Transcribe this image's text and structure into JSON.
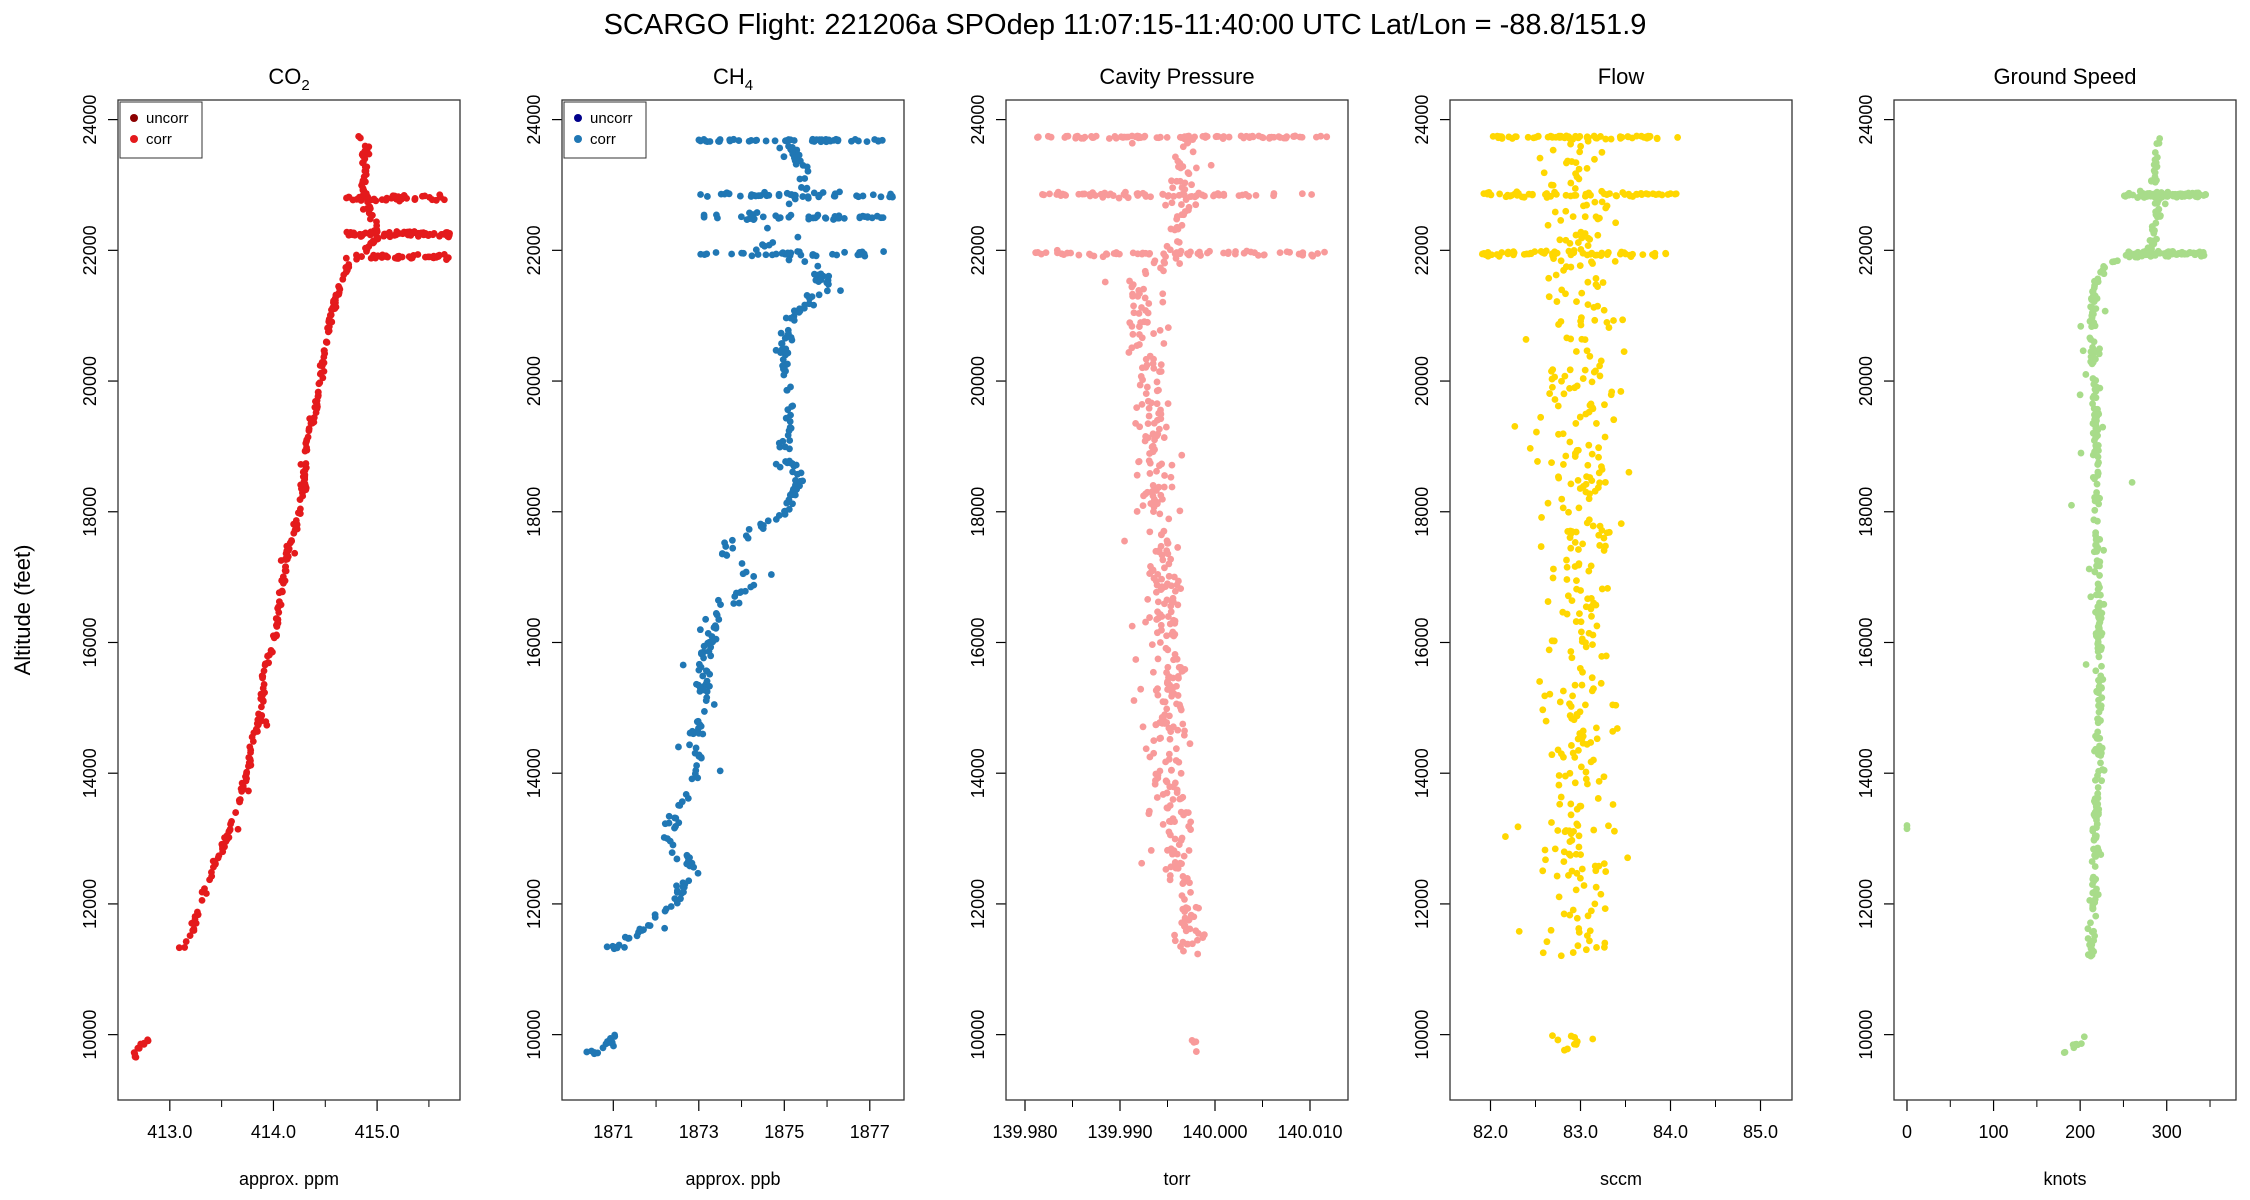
{
  "figure": {
    "title": "SCARGO Flight: 221206a  SPOdep  11:07:15-11:40:00 UTC  Lat/Lon = -88.8/151.9",
    "ylabel": "Altitude (feet)"
  },
  "chart_data": [
    {
      "type": "scatter",
      "title": "CO",
      "title_sub": "2",
      "xlabel": "approx. ppm",
      "xlim": [
        412.5,
        415.8
      ],
      "xticks": [
        "413.0",
        "414.0",
        "415.0"
      ],
      "xtick_values": [
        413.0,
        414.0,
        415.0
      ],
      "minor_xticks": [
        413.5,
        414.5,
        415.5
      ],
      "ylim": [
        9000,
        24300
      ],
      "yticks": [
        10000,
        12000,
        14000,
        16000,
        18000,
        20000,
        22000,
        24000
      ],
      "colors": {
        "uncorr": "#8b0000",
        "corr": "#e41a1c"
      },
      "legend": {
        "position": "top-left",
        "entries": [
          "uncorr",
          "corr"
        ]
      },
      "series": [
        {
          "name": "corr",
          "kind": "profile",
          "profile": [
            [
              9650,
              412.65
            ],
            [
              9800,
              412.7
            ],
            [
              9950,
              412.8
            ],
            [
              11200,
              413.05
            ],
            [
              11500,
              413.2
            ],
            [
              12000,
              413.3
            ],
            [
              12500,
              413.4
            ],
            [
              13000,
              413.55
            ],
            [
              13500,
              413.65
            ],
            [
              14000,
              413.75
            ],
            [
              14500,
              413.8
            ],
            [
              15000,
              413.9
            ],
            [
              15500,
              413.9
            ],
            [
              16000,
              414.0
            ],
            [
              16500,
              414.05
            ],
            [
              17000,
              414.1
            ],
            [
              17500,
              414.15
            ],
            [
              18000,
              414.25
            ],
            [
              18500,
              414.3
            ],
            [
              19000,
              414.3
            ],
            [
              19500,
              414.4
            ],
            [
              20000,
              414.45
            ],
            [
              20500,
              414.5
            ],
            [
              21000,
              414.55
            ],
            [
              21500,
              414.65
            ],
            [
              21850,
              414.75
            ],
            [
              22000,
              414.9
            ],
            [
              22200,
              415.0
            ],
            [
              22500,
              414.95
            ],
            [
              22800,
              414.9
            ],
            [
              23000,
              414.85
            ],
            [
              23200,
              414.9
            ],
            [
              23400,
              414.85
            ],
            [
              23600,
              414.9
            ],
            [
              23800,
              414.8
            ]
          ],
          "gaps": [
            [
              10000,
              11200
            ]
          ],
          "noise": 0.035,
          "outlier_noise": 0.12,
          "dense_bands": [
            21900,
            22250,
            22800
          ],
          "band_range": [
            414.7,
            415.7
          ],
          "n": 520,
          "seed": 11
        }
      ]
    },
    {
      "type": "scatter",
      "title": "CH",
      "title_sub": "4",
      "xlabel": "approx. ppb",
      "xlim": [
        1869.8,
        1877.8
      ],
      "xticks": [
        "1871",
        "1873",
        "1875",
        "1877"
      ],
      "xtick_values": [
        1871,
        1873,
        1875,
        1877
      ],
      "minor_xticks": [
        1872,
        1874,
        1876
      ],
      "ylim": [
        9000,
        24300
      ],
      "yticks": [
        10000,
        12000,
        14000,
        16000,
        18000,
        20000,
        22000,
        24000
      ],
      "colors": {
        "uncorr": "#00008b",
        "corr": "#2077b4"
      },
      "legend": {
        "position": "top-left",
        "entries": [
          "uncorr",
          "corr"
        ]
      },
      "series": [
        {
          "name": "corr",
          "kind": "profile",
          "profile": [
            [
              9700,
              1870.5
            ],
            [
              9850,
              1870.9
            ],
            [
              9950,
              1871.0
            ],
            [
              11300,
              1871.0
            ],
            [
              11600,
              1871.7
            ],
            [
              12000,
              1872.4
            ],
            [
              12500,
              1872.9
            ],
            [
              13000,
              1872.3
            ],
            [
              13500,
              1872.5
            ],
            [
              14000,
              1873.0
            ],
            [
              14500,
              1872.9
            ],
            [
              15000,
              1873.2
            ],
            [
              15500,
              1873.1
            ],
            [
              16000,
              1873.2
            ],
            [
              16500,
              1873.6
            ],
            [
              17000,
              1874.3
            ],
            [
              17400,
              1873.5
            ],
            [
              18000,
              1875.0
            ],
            [
              18500,
              1875.3
            ],
            [
              19000,
              1875.0
            ],
            [
              19500,
              1875.2
            ],
            [
              20000,
              1875.0
            ],
            [
              20500,
              1875.0
            ],
            [
              21000,
              1875.2
            ],
            [
              21400,
              1876.0
            ],
            [
              21800,
              1875.8
            ],
            [
              21950,
              1874.0
            ],
            [
              22200,
              1875.0
            ],
            [
              22500,
              1874.0
            ],
            [
              22800,
              1875.5
            ],
            [
              23200,
              1875.5
            ],
            [
              23700,
              1875.0
            ]
          ],
          "gaps": [
            [
              10000,
              11300
            ]
          ],
          "noise": 0.25,
          "outlier_noise": 0.8,
          "dense_bands": [
            21950,
            22500,
            22850,
            23750
          ],
          "band_range": [
            1873.0,
            1877.6
          ],
          "n": 560,
          "seed": 23
        }
      ]
    },
    {
      "type": "scatter",
      "title": "Cavity Pressure",
      "xlabel": "torr",
      "xlim": [
        139.978,
        140.014
      ],
      "xticks": [
        "139.980",
        "139.990",
        "140.000",
        "140.010"
      ],
      "xtick_values": [
        139.98,
        139.99,
        140.0,
        140.01
      ],
      "minor_xticks": [
        139.985,
        139.995,
        140.005
      ],
      "ylim": [
        9000,
        24300
      ],
      "yticks": [
        10000,
        12000,
        14000,
        16000,
        18000,
        20000,
        22000,
        24000
      ],
      "colors": {
        "corr": "#f89a9a"
      },
      "series": [
        {
          "name": "pressure",
          "kind": "profile",
          "profile": [
            [
              9700,
              139.998
            ],
            [
              9900,
              139.998
            ],
            [
              11200,
              139.997
            ],
            [
              12000,
              139.997
            ],
            [
              14000,
              139.995
            ],
            [
              16000,
              139.995
            ],
            [
              18000,
              139.994
            ],
            [
              20000,
              139.993
            ],
            [
              21500,
              139.992
            ],
            [
              21950,
              139.996
            ],
            [
              23750,
              139.997
            ]
          ],
          "gaps": [
            [
              10000,
              11200
            ]
          ],
          "noise": 0.0025,
          "outlier_noise": 0.006,
          "dense_bands": [
            21950,
            22850,
            23750
          ],
          "band_range": [
            139.981,
            140.012
          ],
          "n": 700,
          "seed": 37
        }
      ]
    },
    {
      "type": "scatter",
      "title": "Flow",
      "xlabel": "sccm",
      "xlim": [
        81.55,
        85.35
      ],
      "xticks": [
        "82.0",
        "83.0",
        "84.0",
        "85.0"
      ],
      "xtick_values": [
        82.0,
        83.0,
        84.0,
        85.0
      ],
      "minor_xticks": [
        82.5,
        83.5,
        84.5
      ],
      "ylim": [
        9000,
        24300
      ],
      "yticks": [
        10000,
        12000,
        14000,
        16000,
        18000,
        20000,
        22000,
        24000
      ],
      "colors": {
        "corr": "#ffd700"
      },
      "series": [
        {
          "name": "flow",
          "kind": "profile",
          "profile": [
            [
              9700,
              83.0
            ],
            [
              9900,
              83.0
            ],
            [
              11200,
              83.0
            ],
            [
              14000,
              83.0
            ],
            [
              18000,
              83.0
            ],
            [
              21900,
              83.0
            ],
            [
              23750,
              83.0
            ]
          ],
          "gaps": [
            [
              10000,
              11200
            ]
          ],
          "noise": 0.6,
          "outlier_noise": 1.1,
          "dense_bands": [
            21950,
            22850,
            23750
          ],
          "band_range": [
            81.9,
            84.1
          ],
          "n": 620,
          "seed": 53
        }
      ]
    },
    {
      "type": "scatter",
      "title": "Ground Speed",
      "xlabel": "knots",
      "xlim": [
        -15,
        380
      ],
      "xticks": [
        "0",
        "100",
        "200",
        "300"
      ],
      "xtick_values": [
        0,
        100,
        200,
        300
      ],
      "minor_xticks": [
        50,
        150,
        250,
        350
      ],
      "ylim": [
        9000,
        24300
      ],
      "yticks": [
        10000,
        12000,
        14000,
        16000,
        18000,
        20000,
        22000,
        24000
      ],
      "colors": {
        "corr": "#a8dc8a"
      },
      "series": [
        {
          "name": "speed",
          "kind": "profile",
          "profile": [
            [
              9700,
              180
            ],
            [
              9950,
              205
            ],
            [
              11200,
              212
            ],
            [
              12000,
              215
            ],
            [
              14000,
              222
            ],
            [
              16000,
              222
            ],
            [
              18000,
              220
            ],
            [
              20000,
              215
            ],
            [
              21500,
              215
            ],
            [
              21800,
              230
            ],
            [
              21950,
              280
            ],
            [
              22500,
              290
            ],
            [
              23000,
              285
            ],
            [
              23750,
              290
            ]
          ],
          "gaps": [
            [
              10000,
              11200
            ]
          ],
          "noise": 6,
          "outlier_noise": 22,
          "dense_bands": [
            21950,
            22850
          ],
          "band_range": [
            250,
            345
          ],
          "n": 560,
          "seed": 71
        },
        {
          "name": "outlier",
          "kind": "points",
          "points": [
            [
              0,
              13150
            ],
            [
              0,
              13200
            ],
            [
              260,
              18450
            ],
            [
              190,
              18100
            ]
          ]
        }
      ]
    }
  ]
}
